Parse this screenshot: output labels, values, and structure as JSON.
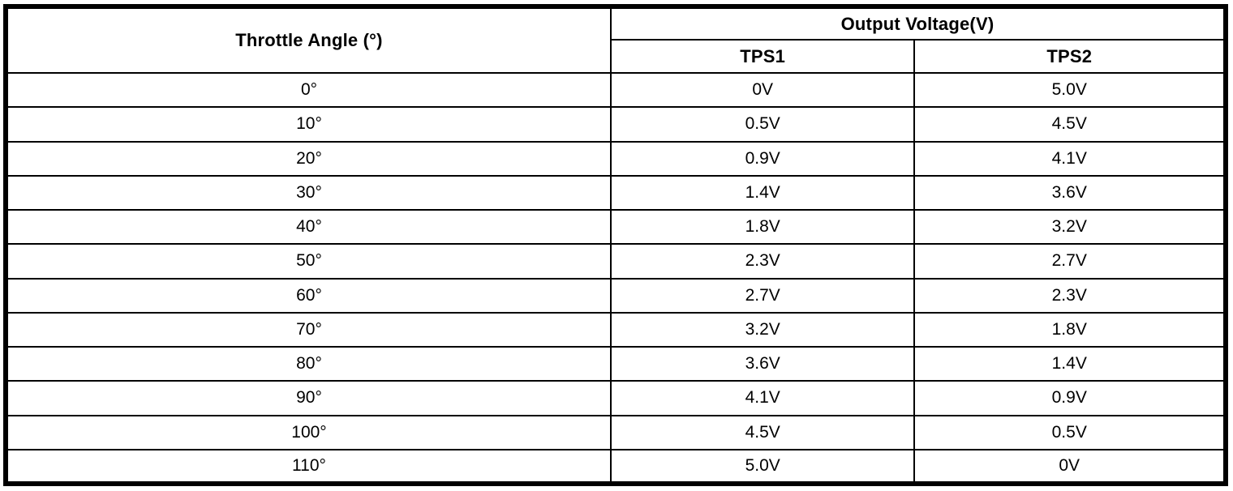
{
  "table": {
    "angle_header": "Throttle Angle (°)",
    "output_voltage_header": "Output Voltage(V)",
    "sub_headers": [
      "TPS1",
      "TPS2"
    ],
    "rows": [
      {
        "angle": "0°",
        "tps1": "0V",
        "tps2": "5.0V"
      },
      {
        "angle": "10°",
        "tps1": "0.5V",
        "tps2": "4.5V"
      },
      {
        "angle": "20°",
        "tps1": "0.9V",
        "tps2": "4.1V"
      },
      {
        "angle": "30°",
        "tps1": "1.4V",
        "tps2": "3.6V"
      },
      {
        "angle": "40°",
        "tps1": "1.8V",
        "tps2": "3.2V"
      },
      {
        "angle": "50°",
        "tps1": "2.3V",
        "tps2": "2.7V"
      },
      {
        "angle": "60°",
        "tps1": "2.7V",
        "tps2": "2.3V"
      },
      {
        "angle": "70°",
        "tps1": "3.2V",
        "tps2": "1.8V"
      },
      {
        "angle": "80°",
        "tps1": "3.6V",
        "tps2": "1.4V"
      },
      {
        "angle": "90°",
        "tps1": "4.1V",
        "tps2": "0.9V"
      },
      {
        "angle": "100°",
        "tps1": "4.5V",
        "tps2": "0.5V"
      },
      {
        "angle": "110°",
        "tps1": "5.0V",
        "tps2": "0V"
      }
    ]
  }
}
